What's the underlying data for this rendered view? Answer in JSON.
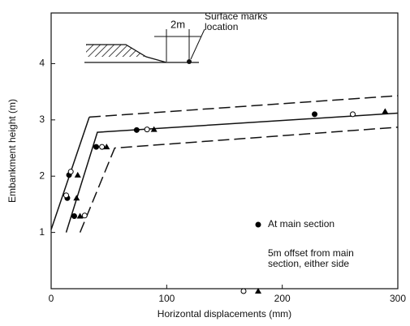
{
  "chart_data": {
    "type": "scatter",
    "xlabel": "Horizontal displacements (mm)",
    "ylabel": "Embankment height (m)",
    "xlim": [
      0,
      300
    ],
    "ylim": [
      0,
      4.9
    ],
    "xticks": [
      0,
      100,
      200,
      300
    ],
    "yticks": [
      1,
      2,
      3,
      4
    ],
    "series": [
      {
        "name": "At main section",
        "marker": "filled-circle",
        "color": "#000000",
        "x": [
          14,
          15.5,
          20,
          39,
          74,
          228
        ],
        "values": [
          1.61,
          2.02,
          1.29,
          2.52,
          2.82,
          3.1
        ]
      },
      {
        "name": "5m offset from main section, either side",
        "marker": "open-circle",
        "color": "#000000",
        "x": [
          13,
          17,
          29,
          44,
          83,
          261
        ],
        "values": [
          1.66,
          2.08,
          1.3,
          2.52,
          2.83,
          3.1
        ]
      },
      {
        "marker": "triangle",
        "color": "#000000",
        "x": [
          22,
          23,
          25,
          48,
          89,
          289
        ],
        "values": [
          1.61,
          2.02,
          1.29,
          2.52,
          2.83,
          3.15
        ]
      }
    ],
    "lines": [
      {
        "style": "solid",
        "x": [
          0,
          33
        ],
        "values": [
          1.05,
          3.05
        ]
      },
      {
        "style": "dashed",
        "x": [
          33,
          300
        ],
        "values": [
          3.05,
          3.43
        ]
      },
      {
        "style": "solid",
        "x": [
          13,
          40,
          300
        ],
        "values": [
          1.0,
          2.78,
          3.12
        ]
      },
      {
        "style": "dashed",
        "x": [
          25,
          55,
          300
        ],
        "values": [
          1.0,
          2.5,
          2.87
        ]
      }
    ],
    "annotations": {
      "dimension": "2m",
      "location": "Surface marks location"
    }
  }
}
